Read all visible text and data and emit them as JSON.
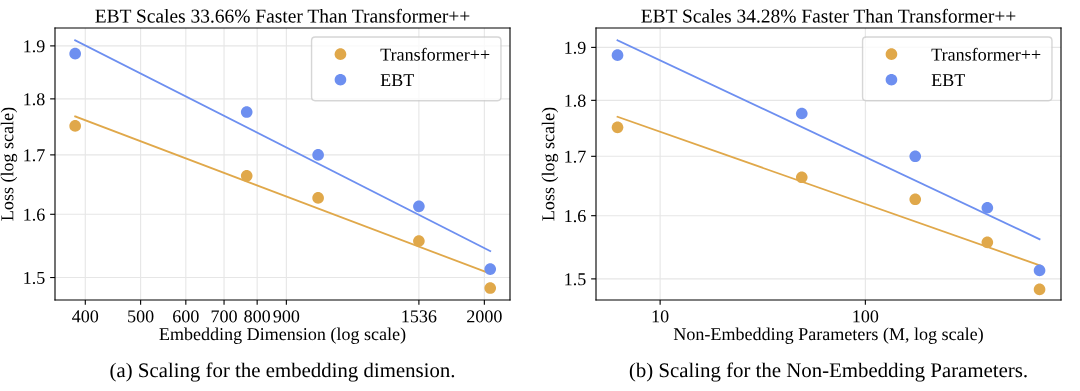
{
  "chart_data": [
    {
      "type": "scatter",
      "title": "EBT Scales 33.66% Faster Than Transformer++",
      "xlabel": "Embedding Dimension (log scale)",
      "ylabel": "Loss (log scale)",
      "log": "xy",
      "xlim": [
        354,
        2218
      ],
      "ylim": [
        1.466,
        1.935
      ],
      "xticks": [
        400,
        500,
        600,
        700,
        800,
        900,
        1536,
        2000
      ],
      "yticks": [
        {
          "value": 1.5,
          "label": "1.5"
        },
        {
          "value": 1.6,
          "label": "1.6"
        },
        {
          "value": 1.7,
          "label": "1.7"
        },
        {
          "value": 1.8,
          "label": "1.8"
        },
        {
          "value": 1.9,
          "label": "1.9"
        }
      ],
      "grid": true,
      "legend": "top right",
      "series": [
        {
          "name": "Transformer++",
          "marker": "circle",
          "color": "#e0a84a",
          "x": [
            384,
            767,
            1023,
            1536,
            2048
          ],
          "values": [
            1.751,
            1.664,
            1.627,
            1.557,
            1.484
          ]
        },
        {
          "name": "EBT",
          "marker": "circle",
          "color": "#6d8ff0",
          "x": [
            384,
            767,
            1023,
            1536,
            2048
          ],
          "values": [
            1.885,
            1.776,
            1.7,
            1.613,
            1.513
          ]
        },
        {
          "type": "line",
          "marker": "none",
          "color": "#e0a84a",
          "x": [
            384,
            2048
          ],
          "values": [
            1.768,
            1.506
          ]
        },
        {
          "type": "line",
          "marker": "none",
          "color": "#6d8ff0",
          "x": [
            384,
            2048
          ],
          "values": [
            1.911,
            1.541
          ]
        }
      ],
      "annotations": [
        "(a) Scaling for the embedding dimension."
      ]
    },
    {
      "type": "scatter",
      "title": "EBT Scales 34.28% Faster Than Transformer++",
      "xlabel": "Non-Embedding Parameters (M, log scale)",
      "ylabel": "Loss (log scale)",
      "log": "xy",
      "xlim": [
        4.87,
        898
      ],
      "ylim": [
        1.468,
        1.938
      ],
      "xticks": [
        10,
        100
      ],
      "yticks": [
        {
          "value": 1.5,
          "label": "1.5"
        },
        {
          "value": 1.6,
          "label": "1.6"
        },
        {
          "value": 1.7,
          "label": "1.7"
        },
        {
          "value": 1.8,
          "label": "1.8"
        },
        {
          "value": 1.9,
          "label": "1.9"
        }
      ],
      "grid": true,
      "legend": "top right",
      "series": [
        {
          "name": "Transformer++",
          "marker": "circle",
          "color": "#e0a84a",
          "x": [
            6.2,
            49,
            175,
            393,
            706
          ],
          "values": [
            1.751,
            1.664,
            1.627,
            1.557,
            1.484
          ]
        },
        {
          "name": "EBT",
          "marker": "circle",
          "color": "#6d8ff0",
          "x": [
            6.2,
            49,
            175,
            393,
            706
          ],
          "values": [
            1.885,
            1.776,
            1.7,
            1.613,
            1.513
          ]
        },
        {
          "type": "line",
          "marker": "none",
          "color": "#e0a84a",
          "x": [
            6.2,
            706
          ],
          "values": [
            1.77,
            1.521
          ]
        },
        {
          "type": "line",
          "marker": "none",
          "color": "#6d8ff0",
          "x": [
            6.2,
            706
          ],
          "values": [
            1.914,
            1.562
          ]
        }
      ],
      "annotations": [
        "(b) Scaling for the Non-Embedding Parameters."
      ]
    }
  ]
}
